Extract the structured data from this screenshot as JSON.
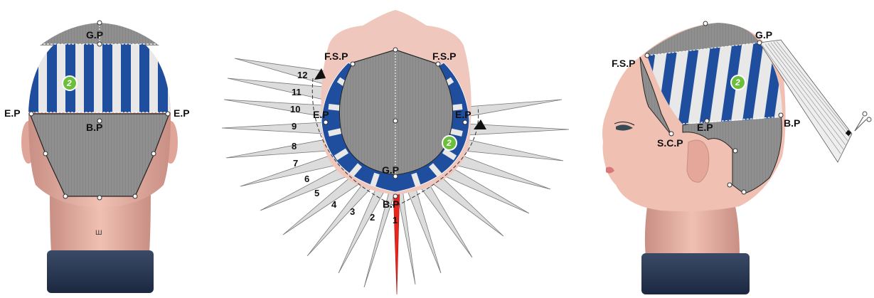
{
  "labels": {
    "gp": "G.P",
    "bp": "B.P",
    "ep": "E.P",
    "fsp": "F.S.P",
    "scp": "S.C.P"
  },
  "section_badge": "2",
  "sections": [
    "1",
    "2",
    "3",
    "4",
    "5",
    "6",
    "7",
    "8",
    "9",
    "10",
    "11",
    "12"
  ],
  "colors": {
    "stripe_blue": "#1f4e9e",
    "stripe_white": "#e8e8e8",
    "hair_gray": "#8d8d8d",
    "skin": "#e8b0a4",
    "neck_band": "#2a3a55",
    "highlight_red": "#e8261c",
    "badge_green": "#6cbf3b"
  }
}
